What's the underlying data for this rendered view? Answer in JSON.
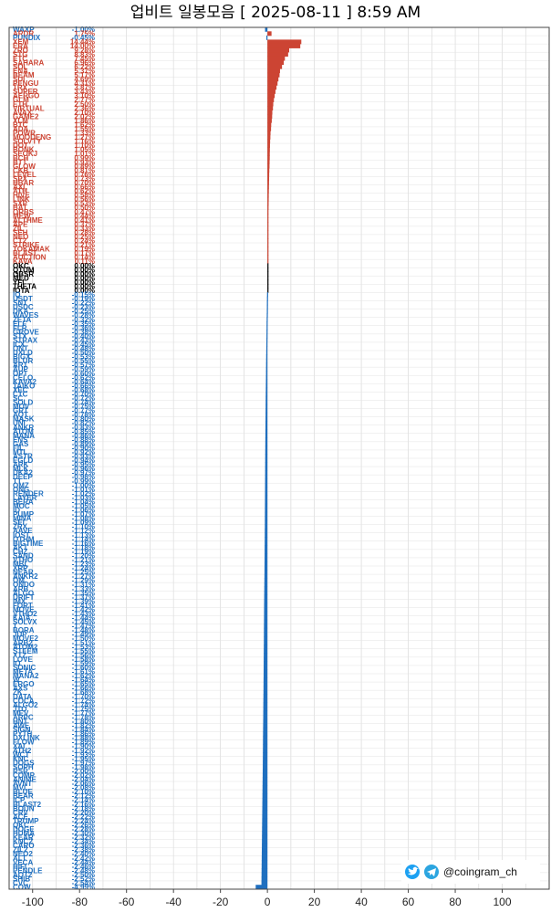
{
  "chart_data": {
    "type": "bar",
    "orientation": "horizontal",
    "title": "업비트 일봉모음 [ 2025-08-11 ]  8:59 AM",
    "xlim": [
      -110,
      120
    ],
    "xticks": [
      -100,
      -80,
      -60,
      -40,
      -20,
      0,
      20,
      40,
      60,
      80,
      100
    ],
    "grid": true,
    "colors": {
      "up": "#cc4433",
      "flat": "#000000",
      "down": "#1f6fbf"
    },
    "rows": [
      {
        "symbol": "WAXP",
        "pct": "-1.00%",
        "value": -1.0
      },
      {
        "symbol": "ARDR",
        "pct": "1.75%",
        "value": 1.75
      },
      {
        "symbol": "PUNDIX",
        "pct": "-0.45%",
        "value": -0.45
      },
      {
        "symbol": "XEM",
        "pct": "14.44%",
        "value": 14.44
      },
      {
        "symbol": "ERA",
        "pct": "14.00%",
        "value": 14.0
      },
      {
        "symbol": "ZRO",
        "pct": "9.28%",
        "value": 9.28
      },
      {
        "symbol": "STG",
        "pct": "8.83%",
        "value": 8.83
      },
      {
        "symbol": "ETC",
        "pct": "7.45%",
        "value": 7.45
      },
      {
        "symbol": "SAHARA",
        "pct": "6.96%",
        "value": 6.96
      },
      {
        "symbol": "SOL",
        "pct": "6.22%",
        "value": 6.22
      },
      {
        "symbol": "ENA",
        "pct": "5.37%",
        "value": 5.37
      },
      {
        "symbol": "BEAM",
        "pct": "5.17%",
        "value": 5.17
      },
      {
        "symbol": "SUI",
        "pct": "4.69%",
        "value": 4.69
      },
      {
        "symbol": "PENGU",
        "pct": "4.31%",
        "value": 4.31
      },
      {
        "symbol": "TRX",
        "pct": "3.87%",
        "value": 3.87
      },
      {
        "symbol": "SUPER",
        "pct": "3.43%",
        "value": 3.43
      },
      {
        "symbol": "AERGO",
        "pct": "3.10%",
        "value": 3.1
      },
      {
        "symbol": "GLM",
        "pct": "2.77%",
        "value": 2.77
      },
      {
        "symbol": "ETH",
        "pct": "2.50%",
        "value": 2.5
      },
      {
        "symbol": "VIRTUAL",
        "pct": "2.36%",
        "value": 2.36
      },
      {
        "symbol": "AVAX",
        "pct": "2.10%",
        "value": 2.1
      },
      {
        "symbol": "GAME2",
        "pct": "2.02%",
        "value": 2.02
      },
      {
        "symbol": "XLM",
        "pct": "1.86%",
        "value": 1.86
      },
      {
        "symbol": "BTC",
        "pct": "1.62%",
        "value": 1.62
      },
      {
        "symbol": "ADA",
        "pct": "1.55%",
        "value": 1.55
      },
      {
        "symbol": "POWR",
        "pct": "1.33%",
        "value": 1.33
      },
      {
        "symbol": "MOODENG",
        "pct": "1.27%",
        "value": 1.27
      },
      {
        "symbol": "SOLVTY",
        "pct": "1.16%",
        "value": 1.16
      },
      {
        "symbol": "DOT",
        "pct": "1.10%",
        "value": 1.1
      },
      {
        "symbol": "BONK",
        "pct": "1.05%",
        "value": 1.05
      },
      {
        "symbol": "SEOKJ",
        "pct": "1.01%",
        "value": 1.01
      },
      {
        "symbol": "BCH",
        "pct": "0.99%",
        "value": 0.99
      },
      {
        "symbol": "BTT",
        "pct": "0.93%",
        "value": 0.93
      },
      {
        "symbol": "GLOW",
        "pct": "0.89%",
        "value": 0.89
      },
      {
        "symbol": "CKB",
        "pct": "0.81%",
        "value": 0.81
      },
      {
        "symbol": "LEVEL",
        "pct": "0.76%",
        "value": 0.76
      },
      {
        "symbol": "SPX",
        "pct": "0.73%",
        "value": 0.73
      },
      {
        "symbol": "HBAR",
        "pct": "0.70%",
        "value": 0.7
      },
      {
        "symbol": "AXL",
        "pct": "0.66%",
        "value": 0.66
      },
      {
        "symbol": "ATH",
        "pct": "0.62%",
        "value": 0.62
      },
      {
        "symbol": "HIVE",
        "pct": "0.58%",
        "value": 0.58
      },
      {
        "symbol": "LINK",
        "pct": "0.56%",
        "value": 0.56
      },
      {
        "symbol": "SXP",
        "pct": "0.53%",
        "value": 0.53
      },
      {
        "symbol": "BAT",
        "pct": "0.50%",
        "value": 0.5
      },
      {
        "symbol": "ORBS",
        "pct": "0.47%",
        "value": 0.47
      },
      {
        "symbol": "MEW",
        "pct": "0.44%",
        "value": 0.44
      },
      {
        "symbol": "ALTHME",
        "pct": "0.41%",
        "value": 0.41
      },
      {
        "symbol": "APE",
        "pct": "0.37%",
        "value": 0.37
      },
      {
        "symbol": "ZIL",
        "pct": "0.33%",
        "value": 0.33
      },
      {
        "symbol": "SEH",
        "pct": "0.28%",
        "value": 0.28
      },
      {
        "symbol": "NEO",
        "pct": "0.25%",
        "value": 0.25
      },
      {
        "symbol": "CT2",
        "pct": "0.24%",
        "value": 0.24
      },
      {
        "symbol": "STRIKE",
        "pct": "0.21%",
        "value": 0.21
      },
      {
        "symbol": "TOKAMAK",
        "pct": "0.19%",
        "value": 0.19
      },
      {
        "symbol": "BLAST",
        "pct": "0.17%",
        "value": 0.17
      },
      {
        "symbol": "AUCTION",
        "pct": "0.14%",
        "value": 0.14
      },
      {
        "symbol": "KAVA",
        "pct": "0.11%",
        "value": 0.11
      },
      {
        "symbol": "OKC",
        "pct": "0.00%",
        "value": 0.0
      },
      {
        "symbol": "QTUM",
        "pct": "0.00%",
        "value": 0.0
      },
      {
        "symbol": "OBSR",
        "pct": "0.00%",
        "value": 0.0
      },
      {
        "symbol": "MED",
        "pct": "0.00%",
        "value": 0.0
      },
      {
        "symbol": "YFI",
        "pct": "0.00%",
        "value": 0.0
      },
      {
        "symbol": "THETA",
        "pct": "0.00%",
        "value": 0.0
      },
      {
        "symbol": "IOTA",
        "pct": "0.00%",
        "value": 0.0
      },
      {
        "symbol": "IQ",
        "pct": "-0.15%",
        "value": -0.15
      },
      {
        "symbol": "USDT",
        "pct": "-0.19%",
        "value": -0.19
      },
      {
        "symbol": "SNT",
        "pct": "-0.22%",
        "value": -0.22
      },
      {
        "symbol": "USDC",
        "pct": "-0.23%",
        "value": -0.23
      },
      {
        "symbol": "DKA",
        "pct": "-0.25%",
        "value": -0.25
      },
      {
        "symbol": "WAVES",
        "pct": "-0.28%",
        "value": -0.28
      },
      {
        "symbol": "ZETA",
        "pct": "-0.32%",
        "value": -0.32
      },
      {
        "symbol": "ELF",
        "pct": "-0.35%",
        "value": -0.35
      },
      {
        "symbol": "FLR",
        "pct": "-0.36%",
        "value": -0.36
      },
      {
        "symbol": "GROVE",
        "pct": "-0.38%",
        "value": -0.38
      },
      {
        "symbol": "STX",
        "pct": "-0.40%",
        "value": -0.4
      },
      {
        "symbol": "STRAX",
        "pct": "-0.43%",
        "value": -0.43
      },
      {
        "symbol": "ICX",
        "pct": "-0.45%",
        "value": -0.45
      },
      {
        "symbol": "ONT",
        "pct": "-0.48%",
        "value": -0.48
      },
      {
        "symbol": "UXLD",
        "pct": "-0.50%",
        "value": -0.5
      },
      {
        "symbol": "BIGX",
        "pct": "-0.53%",
        "value": -0.53
      },
      {
        "symbol": "BLUR",
        "pct": "-0.55%",
        "value": -0.55
      },
      {
        "symbol": "ART",
        "pct": "-0.57%",
        "value": -0.57
      },
      {
        "symbol": "AUP",
        "pct": "-0.59%",
        "value": -0.59
      },
      {
        "symbol": "OPT",
        "pct": "-0.60%",
        "value": -0.6
      },
      {
        "symbol": "CELO",
        "pct": "-0.62%",
        "value": -0.62
      },
      {
        "symbol": "KAVA2",
        "pct": "-0.64%",
        "value": -0.64
      },
      {
        "symbol": "TAIKO",
        "pct": "-0.66%",
        "value": -0.66
      },
      {
        "symbol": "XEC",
        "pct": "-0.68%",
        "value": -0.68
      },
      {
        "symbol": "CTC",
        "pct": "-0.70%",
        "value": -0.7
      },
      {
        "symbol": "SC",
        "pct": "-0.72%",
        "value": -0.72
      },
      {
        "symbol": "SOLD",
        "pct": "-0.74%",
        "value": -0.74
      },
      {
        "symbol": "MOV",
        "pct": "-0.75%",
        "value": -0.75
      },
      {
        "symbol": "GRT",
        "pct": "-0.77%",
        "value": -0.77
      },
      {
        "symbol": "AQT",
        "pct": "-0.78%",
        "value": -0.78
      },
      {
        "symbol": "MASK",
        "pct": "-0.80%",
        "value": -0.8
      },
      {
        "symbol": "UNI",
        "pct": "-0.82%",
        "value": -0.82
      },
      {
        "symbol": "ANKR",
        "pct": "-0.83%",
        "value": -0.83
      },
      {
        "symbol": "ATOM",
        "pct": "-0.85%",
        "value": -0.85
      },
      {
        "symbol": "MANA",
        "pct": "-0.86%",
        "value": -0.86
      },
      {
        "symbol": "ENS",
        "pct": "-0.88%",
        "value": -0.88
      },
      {
        "symbol": "GAS",
        "pct": "-0.89%",
        "value": -0.89
      },
      {
        "symbol": "FIL",
        "pct": "-0.90%",
        "value": -0.9
      },
      {
        "symbol": "MTL",
        "pct": "-0.92%",
        "value": -0.92
      },
      {
        "symbol": "ASTR",
        "pct": "-0.93%",
        "value": -0.93
      },
      {
        "symbol": "EGLD",
        "pct": "-0.94%",
        "value": -0.94
      },
      {
        "symbol": "ARK",
        "pct": "-0.95%",
        "value": -0.95
      },
      {
        "symbol": "MLK",
        "pct": "-0.96%",
        "value": -0.96
      },
      {
        "symbol": "DKA2",
        "pct": "-0.97%",
        "value": -0.97
      },
      {
        "symbol": "DEEP",
        "pct": "-0.98%",
        "value": -0.98
      },
      {
        "symbol": "TT",
        "pct": "-0.99%",
        "value": -0.99
      },
      {
        "symbol": "OMZ",
        "pct": "-1.00%",
        "value": -1.0
      },
      {
        "symbol": "ONG",
        "pct": "-1.01%",
        "value": -1.01
      },
      {
        "symbol": "RENDER",
        "pct": "-1.02%",
        "value": -1.02
      },
      {
        "symbol": "LAYER",
        "pct": "-1.03%",
        "value": -1.03
      },
      {
        "symbol": "BERA",
        "pct": "-1.04%",
        "value": -1.04
      },
      {
        "symbol": "MOC",
        "pct": "-1.05%",
        "value": -1.05
      },
      {
        "symbol": "ID",
        "pct": "-1.06%",
        "value": -1.06
      },
      {
        "symbol": "PUMP",
        "pct": "-1.07%",
        "value": -1.07
      },
      {
        "symbol": "MINA",
        "pct": "-1.08%",
        "value": -1.08
      },
      {
        "symbol": "SEI",
        "pct": "-1.09%",
        "value": -1.09
      },
      {
        "symbol": "ZRX",
        "pct": "-1.10%",
        "value": -1.1
      },
      {
        "symbol": "AAVE",
        "pct": "-1.12%",
        "value": -1.12
      },
      {
        "symbol": "IOST",
        "pct": "-1.13%",
        "value": -1.13
      },
      {
        "symbol": "OTHM",
        "pct": "-1.14%",
        "value": -1.14
      },
      {
        "symbol": "BIGTIME",
        "pct": "-1.16%",
        "value": -1.16
      },
      {
        "symbol": "AKT",
        "pct": "-1.18%",
        "value": -1.18
      },
      {
        "symbol": "CHZ",
        "pct": "-1.19%",
        "value": -1.19
      },
      {
        "symbol": "SAND",
        "pct": "-1.20%",
        "value": -1.2
      },
      {
        "symbol": "VTHO",
        "pct": "-1.21%",
        "value": -1.21
      },
      {
        "symbol": "MBL",
        "pct": "-1.23%",
        "value": -1.23
      },
      {
        "symbol": "XRP",
        "pct": "-1.24%",
        "value": -1.24
      },
      {
        "symbol": "NEAR",
        "pct": "-1.25%",
        "value": -1.25
      },
      {
        "symbol": "ANKR2",
        "pct": "-1.27%",
        "value": -1.27
      },
      {
        "symbol": "OM",
        "pct": "-1.29%",
        "value": -1.29
      },
      {
        "symbol": "ONDO",
        "pct": "-1.31%",
        "value": -1.31
      },
      {
        "symbol": "ARB",
        "pct": "-1.33%",
        "value": -1.33
      },
      {
        "symbol": "ALGO",
        "pct": "-1.35%",
        "value": -1.35
      },
      {
        "symbol": "DRIFT",
        "pct": "-1.37%",
        "value": -1.37
      },
      {
        "symbol": "IMX",
        "pct": "-1.39%",
        "value": -1.39
      },
      {
        "symbol": "FORT",
        "pct": "-1.41%",
        "value": -1.41
      },
      {
        "symbol": "MOVE",
        "pct": "-1.42%",
        "value": -1.42
      },
      {
        "symbol": "VTHO2",
        "pct": "-1.43%",
        "value": -1.43
      },
      {
        "symbol": "KAIA",
        "pct": "-1.44%",
        "value": -1.44
      },
      {
        "symbol": "SOLVX",
        "pct": "-1.45%",
        "value": -1.45
      },
      {
        "symbol": "T",
        "pct": "-1.47%",
        "value": -1.47
      },
      {
        "symbol": "BORA",
        "pct": "-1.48%",
        "value": -1.48
      },
      {
        "symbol": "JUP",
        "pct": "-1.49%",
        "value": -1.49
      },
      {
        "symbol": "MOVE2",
        "pct": "-1.50%",
        "value": -1.5
      },
      {
        "symbol": "ARB2",
        "pct": "-1.51%",
        "value": -1.51
      },
      {
        "symbol": "ATOM2",
        "pct": "-1.53%",
        "value": -1.53
      },
      {
        "symbol": "STEEM",
        "pct": "-1.55%",
        "value": -1.55
      },
      {
        "symbol": "XTZ",
        "pct": "-1.56%",
        "value": -1.56
      },
      {
        "symbol": "LOVE",
        "pct": "-1.58%",
        "value": -1.58
      },
      {
        "symbol": "IO",
        "pct": "-1.59%",
        "value": -1.59
      },
      {
        "symbol": "SONIC",
        "pct": "-1.60%",
        "value": -1.6
      },
      {
        "symbol": "META",
        "pct": "-1.61%",
        "value": -1.61
      },
      {
        "symbol": "MANA2",
        "pct": "-1.62%",
        "value": -1.62
      },
      {
        "symbol": "W",
        "pct": "-1.64%",
        "value": -1.64
      },
      {
        "symbol": "ERGO",
        "pct": "-1.65%",
        "value": -1.65
      },
      {
        "symbol": "AXS",
        "pct": "-1.66%",
        "value": -1.66
      },
      {
        "symbol": "ZK",
        "pct": "-1.68%",
        "value": -1.68
      },
      {
        "symbol": "DATA",
        "pct": "-1.70%",
        "value": -1.7
      },
      {
        "symbol": "COCA",
        "pct": "-1.72%",
        "value": -1.72
      },
      {
        "symbol": "ALGO2",
        "pct": "-1.74%",
        "value": -1.74
      },
      {
        "symbol": "JTO",
        "pct": "-1.75%",
        "value": -1.75
      },
      {
        "symbol": "MEV",
        "pct": "-1.77%",
        "value": -1.77
      },
      {
        "symbol": "ARPC",
        "pct": "-1.78%",
        "value": -1.78
      },
      {
        "symbol": "HNT",
        "pct": "-1.80%",
        "value": -1.8
      },
      {
        "symbol": "AWE",
        "pct": "-1.82%",
        "value": -1.82
      },
      {
        "symbol": "SIGN",
        "pct": "-1.84%",
        "value": -1.84
      },
      {
        "symbol": "PYTH",
        "pct": "-1.86%",
        "value": -1.86
      },
      {
        "symbol": "DXLINK",
        "pct": "-1.88%",
        "value": -1.88
      },
      {
        "symbol": "FLOW",
        "pct": "-1.89%",
        "value": -1.89
      },
      {
        "symbol": "XAI",
        "pct": "-1.90%",
        "value": -1.9
      },
      {
        "symbol": "ATH2",
        "pct": "-1.92%",
        "value": -1.92
      },
      {
        "symbol": "WCT",
        "pct": "-1.93%",
        "value": -1.93
      },
      {
        "symbol": "KNC",
        "pct": "-1.95%",
        "value": -1.95
      },
      {
        "symbol": "DOGS",
        "pct": "-1.97%",
        "value": -1.97
      },
      {
        "symbol": "SOPH",
        "pct": "-1.98%",
        "value": -1.98
      },
      {
        "symbol": "RSR",
        "pct": "-2.00%",
        "value": -2.0
      },
      {
        "symbol": "COMP",
        "pct": "-2.02%",
        "value": -2.02
      },
      {
        "symbol": "ANIME",
        "pct": "-2.04%",
        "value": -2.04
      },
      {
        "symbol": "AVNT",
        "pct": "-2.06%",
        "value": -2.06
      },
      {
        "symbol": "MVL",
        "pct": "-2.08%",
        "value": -2.08
      },
      {
        "symbol": "BLUE",
        "pct": "-2.10%",
        "value": -2.1
      },
      {
        "symbol": "BEAR",
        "pct": "-2.12%",
        "value": -2.12
      },
      {
        "symbol": "ICP",
        "pct": "-2.14%",
        "value": -2.14
      },
      {
        "symbol": "BLAST2",
        "pct": "-2.16%",
        "value": -2.16
      },
      {
        "symbol": "BOUN",
        "pct": "-2.18%",
        "value": -2.18
      },
      {
        "symbol": "CRV",
        "pct": "-2.20%",
        "value": -2.2
      },
      {
        "symbol": "ACE",
        "pct": "-2.22%",
        "value": -2.22
      },
      {
        "symbol": "TRUMP",
        "pct": "-2.24%",
        "value": -2.24
      },
      {
        "symbol": "QKC",
        "pct": "-2.26%",
        "value": -2.26
      },
      {
        "symbol": "DOGE",
        "pct": "-2.28%",
        "value": -2.28
      },
      {
        "symbol": "HUMA",
        "pct": "-2.30%",
        "value": -2.3
      },
      {
        "symbol": "KEAR",
        "pct": "-2.32%",
        "value": -2.32
      },
      {
        "symbol": "KNC2",
        "pct": "-2.34%",
        "value": -2.34
      },
      {
        "symbol": "CARO",
        "pct": "-2.36%",
        "value": -2.36
      },
      {
        "symbol": "ZIL2",
        "pct": "-2.38%",
        "value": -2.38
      },
      {
        "symbol": "NEO2",
        "pct": "-2.40%",
        "value": -2.4
      },
      {
        "symbol": "ALT",
        "pct": "-2.42%",
        "value": -2.42
      },
      {
        "symbol": "VECA",
        "pct": "-2.44%",
        "value": -2.44
      },
      {
        "symbol": "HIFI",
        "pct": "-2.46%",
        "value": -2.46
      },
      {
        "symbol": "PENDLE",
        "pct": "-2.48%",
        "value": -2.48
      },
      {
        "symbol": "AQT2",
        "pct": "-2.50%",
        "value": -2.5
      },
      {
        "symbol": "SHIB",
        "pct": "-2.52%",
        "value": -2.52
      },
      {
        "symbol": "CVC",
        "pct": "-2.54%",
        "value": -2.54
      },
      {
        "symbol": "COW",
        "pct": "-4.99%",
        "value": -4.99
      }
    ]
  },
  "brand": {
    "handle": "@coingram_ch",
    "icons": [
      "twitter-bird-icon",
      "telegram-plane-icon"
    ],
    "twitter_color": "#1da1f2",
    "telegram_color": "#2ca5e0"
  }
}
